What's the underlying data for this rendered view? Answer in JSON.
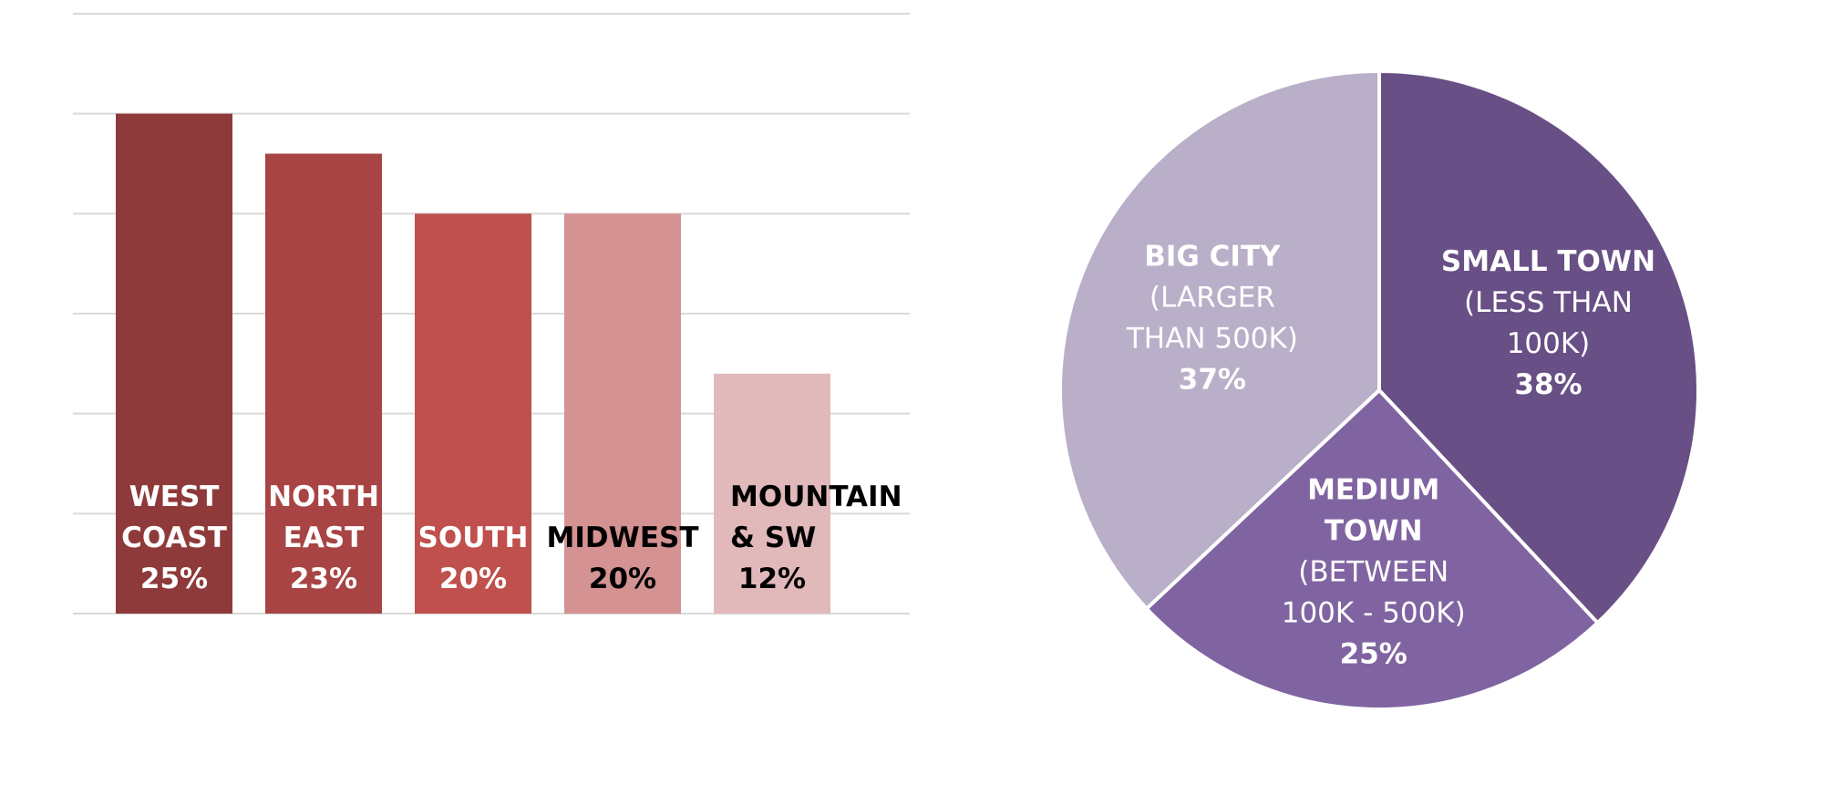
{
  "chart_data": [
    {
      "type": "bar",
      "categories": [
        "WEST COAST",
        "NORTH EAST",
        "SOUTH",
        "MIDWEST",
        "MOUNTAIN & SW"
      ],
      "values": [
        25,
        23,
        20,
        20,
        12
      ],
      "value_labels": [
        "25%",
        "23%",
        "20%",
        "20%",
        "12%"
      ],
      "label_lines": [
        [
          "WEST",
          "COAST"
        ],
        [
          "NORTH",
          "EAST"
        ],
        [
          "SOUTH"
        ],
        [
          "MIDWEST"
        ],
        [
          "MOUNTAIN",
          "& SW"
        ]
      ],
      "colors": [
        "#8e3a3a",
        "#a84444",
        "#c0504d",
        "#d49293",
        "#e1b9ba"
      ],
      "label_colors": [
        "#ffffff",
        "#ffffff",
        "#ffffff",
        "#000000",
        "#000000"
      ],
      "ylim": [
        0,
        30
      ],
      "gridlines": [
        0,
        5,
        10,
        15,
        20,
        25,
        30
      ],
      "grid": true,
      "axis_labels_shown": false
    },
    {
      "type": "pie",
      "slices": [
        {
          "label_lines": [
            "SMALL TOWN",
            "(LESS THAN",
            "100K)"
          ],
          "bold_lines": 1,
          "value": 38,
          "value_label": "38%",
          "color": "#684f85"
        },
        {
          "label_lines": [
            "MEDIUM",
            "TOWN",
            "(BETWEEN",
            "100K - 500K)"
          ],
          "bold_lines": 2,
          "value": 25,
          "value_label": "25%",
          "color": "#8064a2"
        },
        {
          "label_lines": [
            "BIG CITY",
            "(LARGER",
            "THAN 500K)"
          ],
          "bold_lines": 1,
          "value": 37,
          "value_label": "37%",
          "color": "#b9afc8"
        }
      ],
      "start_angle_deg": 0,
      "direction": "clockwise",
      "edge_color": "#ffffff"
    }
  ]
}
